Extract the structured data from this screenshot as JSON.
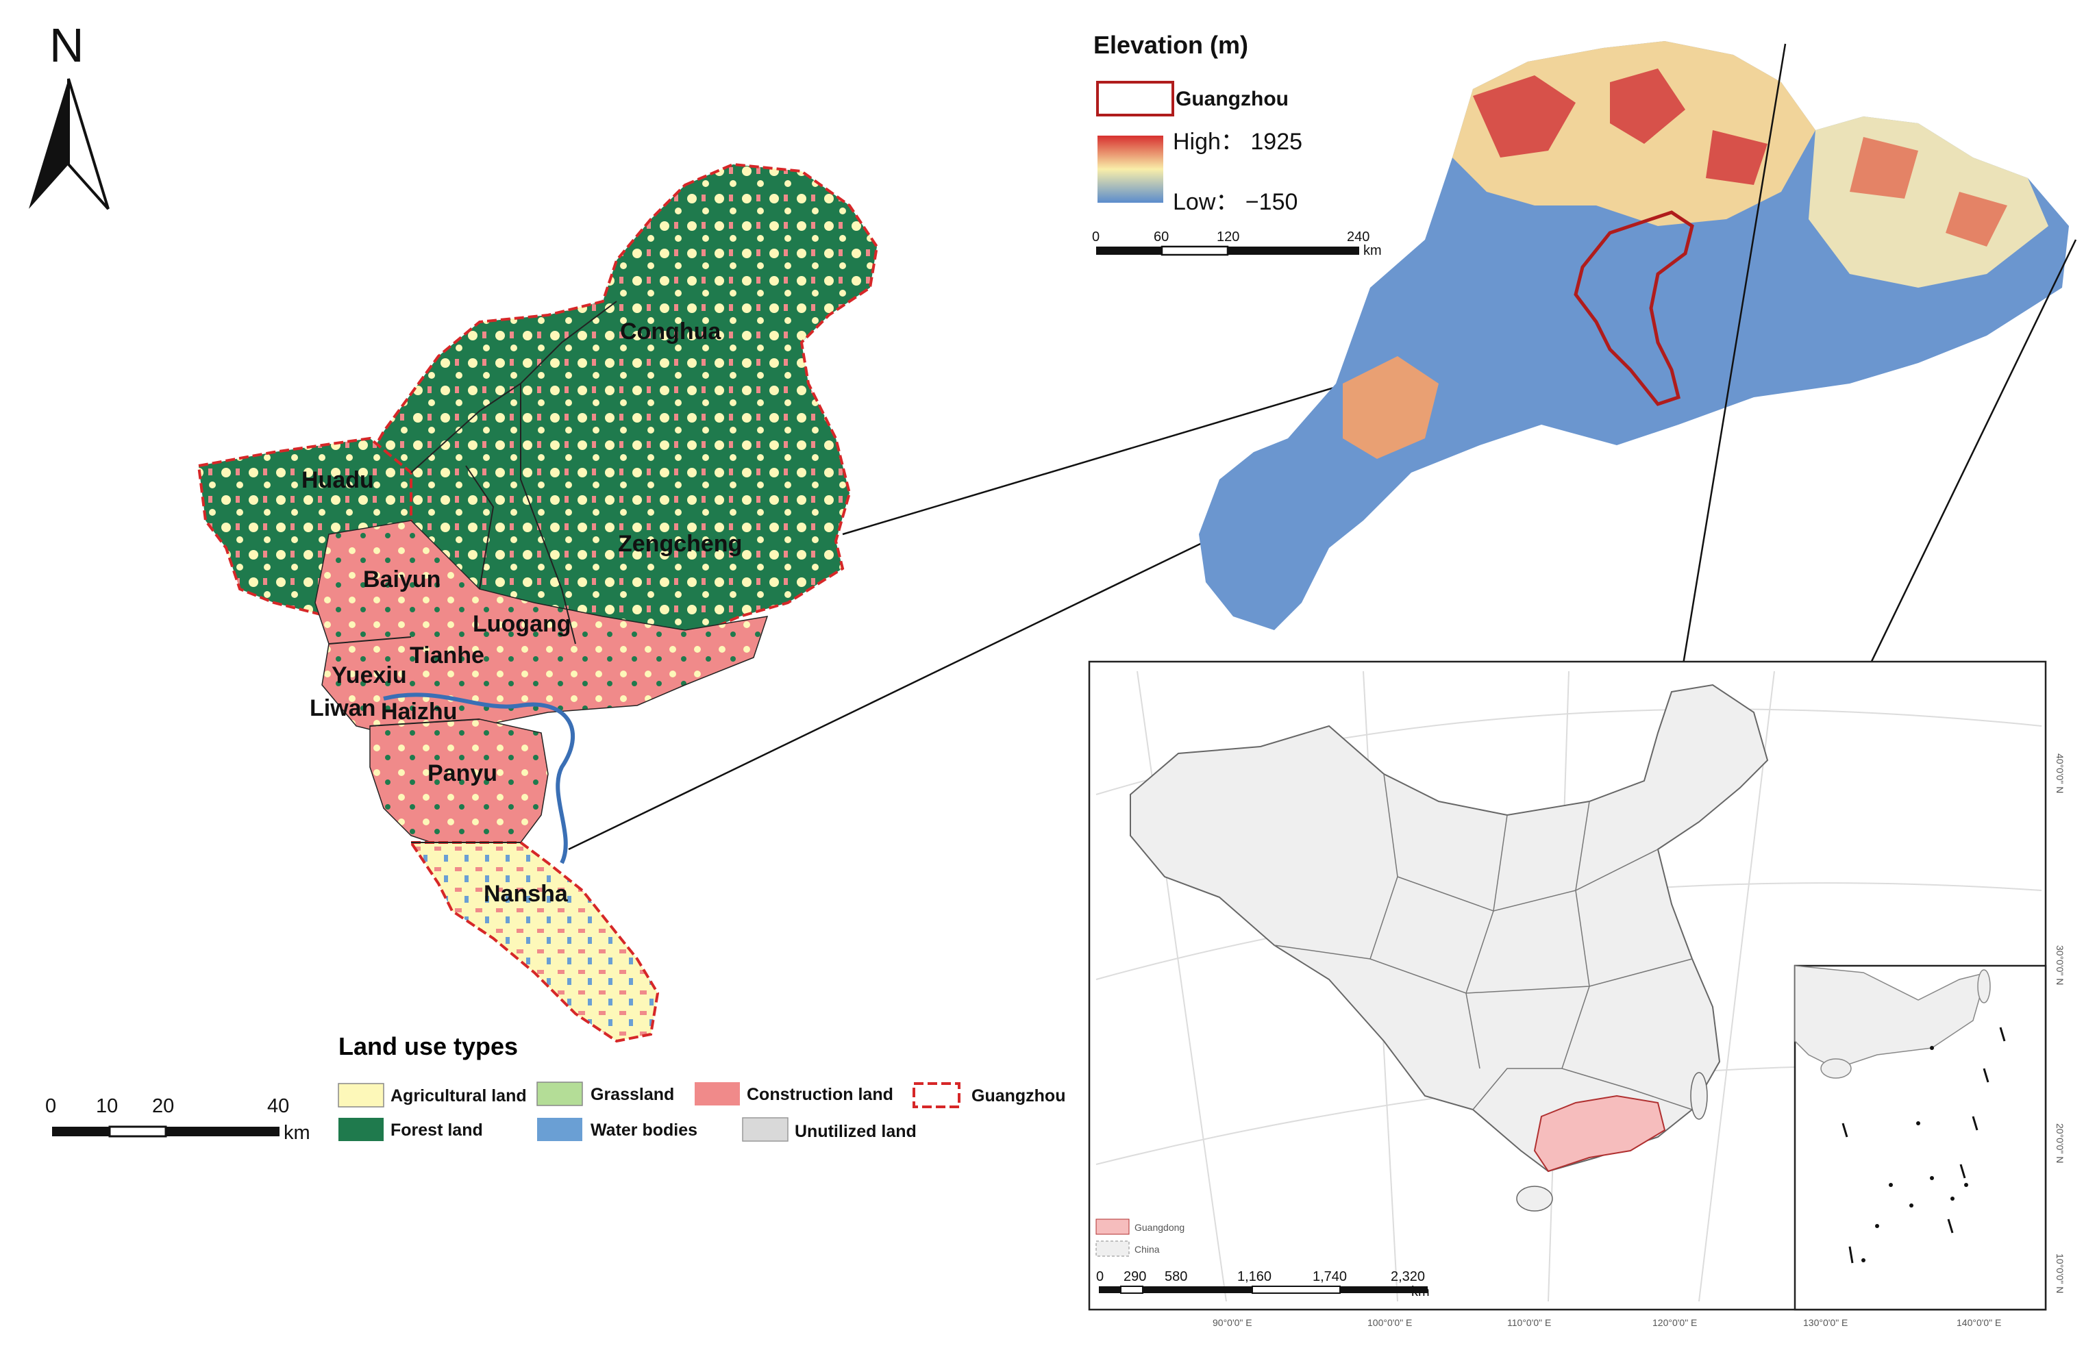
{
  "north_arrow": {
    "label": "N"
  },
  "districts": [
    "Conghua",
    "Huadu",
    "Zengcheng",
    "Baiyun",
    "Luogang",
    "Tianhe",
    "Yuexiu",
    "Liwan",
    "Haizhu",
    "Panyu",
    "Nansha"
  ],
  "land_use_legend": {
    "title": "Land use types",
    "items": [
      {
        "label": "Agricultural land",
        "color": "#fdf8b9"
      },
      {
        "label": "Forest land",
        "color": "#1f7a4d"
      },
      {
        "label": "Grassland",
        "color": "#b4dd97"
      },
      {
        "label": "Water bodies",
        "color": "#6a9fd4"
      },
      {
        "label": "Construction land",
        "color": "#f08a8a"
      },
      {
        "label": "Unutilized land",
        "color": "#d9d9d9"
      },
      {
        "label": "Guangzhou",
        "color": "#d62728"
      }
    ]
  },
  "main_scale": {
    "ticks": [
      "0",
      "10",
      "20",
      "40"
    ],
    "unit": "km"
  },
  "elevation_legend": {
    "title": "Elevation (m)",
    "boundary_label": "Guangzhou",
    "high_label": "High： 1925",
    "low_label": "Low： −150",
    "colors": {
      "high": "#d7302f",
      "mid": "#f9eea9",
      "low": "#5b8ccc"
    }
  },
  "elevation_scale": {
    "ticks": [
      "0",
      "60",
      "120",
      "240"
    ],
    "unit": "km"
  },
  "china_map": {
    "legend": [
      "Guangdong",
      "China"
    ],
    "scale_ticks": [
      "0",
      "290",
      "580",
      "1,160",
      "1,740",
      "2,320"
    ],
    "scale_unit": "km",
    "lon_labels": [
      "90°0'0\" E",
      "100°0'0\" E",
      "110°0'0\" E",
      "120°0'0\" E"
    ],
    "lat_labels": [
      "40°0'0\" N",
      "30°0'0\" N"
    ],
    "inset_lon_labels": [
      "130°0'0\" E",
      "140°0'0\" E"
    ],
    "inset_lat_labels": [
      "20°0'0\" N",
      "10°0'0\" N"
    ]
  }
}
